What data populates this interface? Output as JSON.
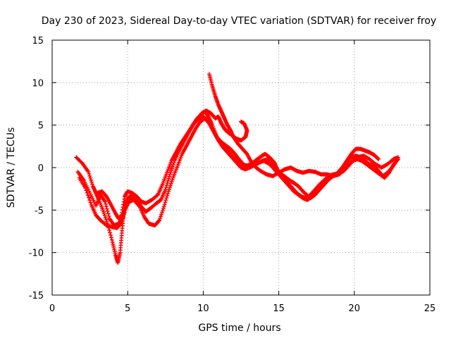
{
  "chart_data": {
    "type": "scatter",
    "title": "Day 230 of 2023, Sidereal Day-to-day VTEC variation (SDTVAR) for receiver froy",
    "xlabel": "GPS time / hours",
    "ylabel": "SDTVAR / TECUs",
    "xlim": [
      0,
      25
    ],
    "ylim": [
      -15,
      15
    ],
    "xticks": [
      0,
      5,
      10,
      15,
      20,
      25
    ],
    "yticks": [
      -15,
      -10,
      -5,
      0,
      5,
      10,
      15
    ],
    "grid": true,
    "marker": "+",
    "color": "#ff0000",
    "series": [
      {
        "name": "track-1",
        "points": [
          [
            1.6,
            1.2
          ],
          [
            2.0,
            0.5
          ],
          [
            2.4,
            -0.5
          ],
          [
            2.7,
            -2.2
          ],
          [
            2.9,
            -3.0
          ],
          [
            3.1,
            -3.8
          ],
          [
            3.4,
            -5.2
          ],
          [
            3.7,
            -6.8
          ],
          [
            4.0,
            -8.8
          ],
          [
            4.2,
            -10.3
          ],
          [
            4.35,
            -11.2
          ],
          [
            4.5,
            -10.0
          ],
          [
            4.6,
            -8.0
          ],
          [
            4.7,
            -6.0
          ],
          [
            4.8,
            -4.5
          ],
          [
            5.0,
            -3.6
          ],
          [
            5.3,
            -3.2
          ],
          [
            5.6,
            -3.8
          ],
          [
            5.9,
            -4.6
          ],
          [
            6.2,
            -5.2
          ],
          [
            6.5,
            -4.8
          ],
          [
            6.9,
            -4.2
          ],
          [
            7.2,
            -3.8
          ],
          [
            7.5,
            -2.6
          ],
          [
            7.8,
            -0.8
          ],
          [
            8.1,
            0.8
          ],
          [
            8.4,
            2.0
          ],
          [
            8.7,
            3.0
          ],
          [
            9.0,
            4.0
          ],
          [
            9.3,
            5.0
          ],
          [
            9.6,
            5.8
          ],
          [
            9.9,
            6.3
          ],
          [
            10.1,
            6.6
          ],
          [
            10.35,
            6.0
          ],
          [
            10.6,
            5.0
          ],
          [
            10.9,
            3.6
          ],
          [
            11.2,
            2.8
          ],
          [
            11.5,
            2.2
          ],
          [
            11.8,
            1.6
          ],
          [
            12.1,
            1.0
          ],
          [
            12.4,
            0.4
          ],
          [
            12.7,
            0.0
          ],
          [
            13.0,
            0.3
          ],
          [
            13.3,
            0.6
          ],
          [
            13.6,
            1.0
          ],
          [
            13.9,
            1.4
          ],
          [
            14.1,
            1.6
          ],
          [
            14.4,
            1.2
          ],
          [
            14.7,
            0.6
          ],
          [
            14.9,
            -0.2
          ],
          [
            15.2,
            -0.8
          ],
          [
            15.5,
            -1.2
          ],
          [
            15.8,
            -1.6
          ],
          [
            16.0,
            -1.8
          ],
          [
            16.3,
            -2.2
          ],
          [
            16.6,
            -2.8
          ],
          [
            16.9,
            -3.3
          ],
          [
            17.1,
            -3.6
          ],
          [
            17.4,
            -3.2
          ],
          [
            17.7,
            -2.6
          ],
          [
            18.0,
            -2.0
          ],
          [
            18.3,
            -1.4
          ],
          [
            18.6,
            -1.0
          ],
          [
            18.9,
            -0.6
          ],
          [
            19.2,
            0.0
          ],
          [
            19.5,
            0.8
          ],
          [
            19.8,
            1.6
          ],
          [
            20.1,
            2.2
          ],
          [
            20.4,
            2.2
          ],
          [
            20.7,
            2.0
          ],
          [
            21.0,
            1.8
          ],
          [
            21.3,
            1.5
          ],
          [
            21.6,
            1.0
          ]
        ]
      },
      {
        "name": "track-2",
        "points": [
          [
            1.7,
            -0.5
          ],
          [
            2.1,
            -1.5
          ],
          [
            2.5,
            -3.0
          ],
          [
            2.9,
            -4.5
          ],
          [
            3.2,
            -3.2
          ],
          [
            3.5,
            -4.0
          ],
          [
            3.8,
            -6.0
          ],
          [
            4.1,
            -6.8
          ],
          [
            4.4,
            -6.6
          ],
          [
            4.7,
            -5.8
          ],
          [
            5.0,
            -4.0
          ],
          [
            5.3,
            -3.4
          ],
          [
            5.6,
            -3.6
          ],
          [
            5.9,
            -4.0
          ],
          [
            6.2,
            -4.2
          ],
          [
            6.6,
            -3.8
          ],
          [
            7.0,
            -3.2
          ],
          [
            7.3,
            -2.0
          ],
          [
            7.6,
            -0.6
          ],
          [
            7.9,
            0.8
          ],
          [
            8.2,
            1.8
          ],
          [
            8.5,
            2.8
          ],
          [
            8.8,
            3.6
          ],
          [
            9.1,
            4.4
          ],
          [
            9.4,
            5.2
          ],
          [
            9.7,
            5.8
          ],
          [
            10.0,
            6.0
          ],
          [
            10.3,
            5.6
          ],
          [
            10.6,
            4.6
          ],
          [
            10.9,
            3.6
          ],
          [
            11.2,
            3.0
          ],
          [
            11.5,
            2.6
          ],
          [
            11.8,
            2.2
          ],
          [
            12.1,
            1.6
          ],
          [
            12.4,
            0.9
          ],
          [
            12.7,
            0.3
          ],
          [
            13.1,
            0.2
          ],
          [
            13.5,
            0.4
          ],
          [
            13.9,
            0.8
          ],
          [
            14.3,
            1.0
          ],
          [
            14.7,
            0.4
          ],
          [
            15.0,
            -0.5
          ],
          [
            15.3,
            -1.2
          ],
          [
            15.6,
            -1.8
          ],
          [
            15.9,
            -2.4
          ],
          [
            16.2,
            -3.0
          ],
          [
            16.5,
            -3.4
          ],
          [
            16.8,
            -3.6
          ],
          [
            17.1,
            -3.2
          ],
          [
            17.4,
            -2.6
          ],
          [
            17.7,
            -2.0
          ],
          [
            18.0,
            -1.5
          ],
          [
            18.3,
            -1.0
          ],
          [
            18.6,
            -0.8
          ],
          [
            18.9,
            -0.8
          ],
          [
            19.2,
            -0.2
          ],
          [
            19.5,
            0.6
          ],
          [
            19.8,
            1.2
          ],
          [
            20.1,
            1.4
          ],
          [
            20.4,
            1.2
          ],
          [
            20.7,
            0.8
          ],
          [
            21.0,
            0.4
          ],
          [
            21.3,
            0.2
          ],
          [
            21.6,
            -0.4
          ],
          [
            21.9,
            -1.0
          ],
          [
            22.2,
            -0.6
          ],
          [
            22.5,
            0.0
          ],
          [
            22.8,
            0.8
          ]
        ]
      },
      {
        "name": "track-3",
        "points": [
          [
            1.8,
            -1.2
          ],
          [
            2.2,
            -2.4
          ],
          [
            2.6,
            -4.4
          ],
          [
            2.9,
            -5.6
          ],
          [
            3.2,
            -6.2
          ],
          [
            3.6,
            -6.8
          ],
          [
            4.0,
            -7.0
          ],
          [
            4.3,
            -7.1
          ],
          [
            4.6,
            -6.5
          ],
          [
            4.8,
            -5.0
          ],
          [
            5.1,
            -4.0
          ],
          [
            5.4,
            -3.8
          ],
          [
            5.8,
            -4.6
          ],
          [
            6.1,
            -5.8
          ],
          [
            6.4,
            -6.6
          ],
          [
            6.8,
            -6.8
          ],
          [
            7.1,
            -6.2
          ],
          [
            7.4,
            -4.6
          ],
          [
            7.7,
            -2.8
          ],
          [
            8.0,
            -1.2
          ],
          [
            8.3,
            0.2
          ],
          [
            8.6,
            1.6
          ],
          [
            8.9,
            2.6
          ],
          [
            9.2,
            3.6
          ],
          [
            9.5,
            4.6
          ],
          [
            9.8,
            5.4
          ],
          [
            10.1,
            5.8
          ],
          [
            10.4,
            5.2
          ],
          [
            10.7,
            4.2
          ],
          [
            11.0,
            3.2
          ],
          [
            11.3,
            2.4
          ],
          [
            11.6,
            1.8
          ],
          [
            11.9,
            1.2
          ],
          [
            12.2,
            0.6
          ],
          [
            12.5,
            0.0
          ],
          [
            12.8,
            -0.2
          ],
          [
            13.2,
            0.1
          ],
          [
            13.6,
            0.5
          ],
          [
            14.0,
            0.8
          ],
          [
            14.4,
            0.4
          ],
          [
            14.8,
            -0.4
          ],
          [
            15.1,
            -1.0
          ],
          [
            15.4,
            -1.6
          ],
          [
            15.7,
            -2.2
          ],
          [
            16.0,
            -2.8
          ],
          [
            16.3,
            -3.2
          ],
          [
            16.6,
            -3.6
          ],
          [
            16.9,
            -3.8
          ],
          [
            17.2,
            -3.4
          ],
          [
            17.5,
            -2.8
          ],
          [
            17.8,
            -2.2
          ],
          [
            18.1,
            -1.6
          ],
          [
            18.4,
            -1.1
          ],
          [
            18.7,
            -0.8
          ],
          [
            19.0,
            -0.6
          ],
          [
            19.3,
            -0.4
          ],
          [
            19.6,
            0.2
          ],
          [
            19.9,
            0.8
          ],
          [
            20.2,
            1.0
          ],
          [
            20.5,
            0.8
          ],
          [
            20.8,
            0.4
          ],
          [
            21.1,
            0.0
          ],
          [
            21.4,
            -0.4
          ],
          [
            21.7,
            -0.8
          ],
          [
            22.0,
            -1.2
          ],
          [
            22.3,
            -0.6
          ],
          [
            22.6,
            0.4
          ],
          [
            22.9,
            1.0
          ]
        ]
      },
      {
        "name": "track-4",
        "points": [
          [
            10.4,
            11.0
          ],
          [
            10.6,
            9.6
          ],
          [
            10.8,
            8.4
          ],
          [
            11.0,
            7.4
          ],
          [
            11.2,
            6.6
          ],
          [
            11.4,
            5.8
          ],
          [
            11.6,
            5.0
          ],
          [
            11.8,
            4.4
          ],
          [
            12.0,
            3.6
          ],
          [
            12.3,
            2.8
          ],
          [
            12.6,
            2.2
          ],
          [
            12.9,
            1.6
          ],
          [
            13.2,
            0.6
          ],
          [
            13.5,
            0.0
          ],
          [
            13.8,
            -0.4
          ],
          [
            14.2,
            -0.8
          ],
          [
            14.6,
            -1.0
          ],
          [
            15.0,
            -0.6
          ],
          [
            15.4,
            -0.2
          ],
          [
            15.8,
            0.0
          ],
          [
            16.2,
            -0.4
          ],
          [
            16.6,
            -0.6
          ],
          [
            17.0,
            -0.4
          ],
          [
            17.4,
            -0.5
          ],
          [
            17.8,
            -0.8
          ],
          [
            18.2,
            -0.8
          ],
          [
            18.6,
            -1.0
          ],
          [
            19.0,
            -0.8
          ],
          [
            19.4,
            -0.2
          ],
          [
            19.8,
            0.6
          ],
          [
            20.2,
            1.2
          ],
          [
            20.6,
            1.4
          ],
          [
            21.0,
            1.0
          ],
          [
            21.4,
            0.4
          ],
          [
            21.8,
            0.0
          ],
          [
            22.2,
            0.4
          ],
          [
            22.6,
            1.0
          ],
          [
            22.9,
            1.2
          ]
        ]
      },
      {
        "name": "track-5",
        "points": [
          [
            9.6,
            5.6
          ],
          [
            9.9,
            6.4
          ],
          [
            10.2,
            6.7
          ],
          [
            10.5,
            6.4
          ],
          [
            10.8,
            5.8
          ],
          [
            11.0,
            6.0
          ],
          [
            11.2,
            5.2
          ],
          [
            11.4,
            4.6
          ],
          [
            11.6,
            4.2
          ],
          [
            11.9,
            3.8
          ],
          [
            12.2,
            3.4
          ],
          [
            12.5,
            3.2
          ],
          [
            12.8,
            3.6
          ],
          [
            12.9,
            4.4
          ],
          [
            12.7,
            5.2
          ],
          [
            12.5,
            5.4
          ]
        ]
      },
      {
        "name": "track-6",
        "points": [
          [
            3.0,
            -3.0
          ],
          [
            3.3,
            -2.8
          ],
          [
            3.6,
            -3.4
          ],
          [
            3.9,
            -4.4
          ],
          [
            4.2,
            -5.4
          ],
          [
            4.4,
            -6.0
          ],
          [
            4.6,
            -5.6
          ],
          [
            4.8,
            -3.4
          ],
          [
            5.0,
            -2.8
          ],
          [
            5.3,
            -3.0
          ],
          [
            5.6,
            -3.4
          ],
          [
            5.9,
            -4.0
          ]
        ]
      }
    ]
  }
}
